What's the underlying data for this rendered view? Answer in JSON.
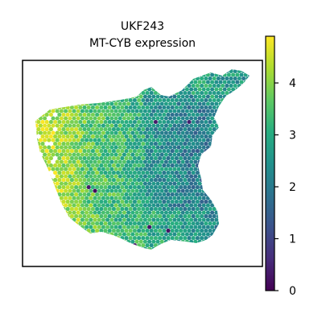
{
  "chart_data": {
    "type": "scatter",
    "plot_kind": "spatial-hexbin",
    "title": "UKF243",
    "subtitle": "MT-CYB expression",
    "xlabel": "",
    "ylabel": "",
    "colormap": "viridis",
    "colorbar": {
      "range": [
        0,
        4.9
      ],
      "ticks": [
        0,
        1,
        2,
        3,
        4
      ],
      "tick_labels": [
        "0",
        "1",
        "2",
        "3",
        "4"
      ]
    },
    "grid": false,
    "legend": "none",
    "value_range": [
      0,
      4.9
    ]
  }
}
